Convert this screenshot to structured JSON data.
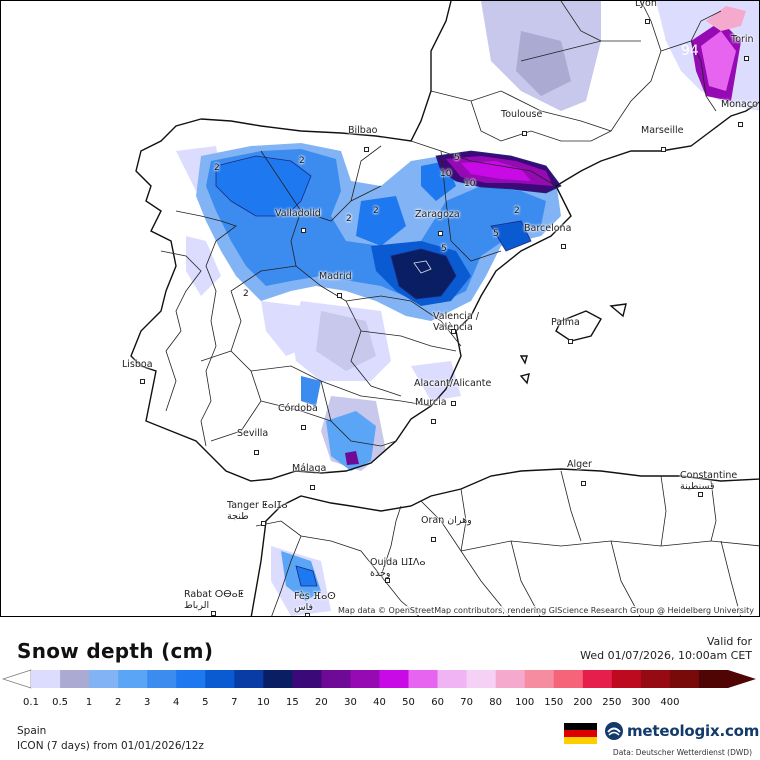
{
  "map": {
    "attribution": "Map data © OpenStreetMap contributors, rendering GIScience Research Group @ Heidelberg University",
    "cities": [
      {
        "name": "Lyon"
      },
      {
        "name": "Torin"
      },
      {
        "name": "Toulouse"
      },
      {
        "name": "Monaco"
      },
      {
        "name": "Marseille"
      },
      {
        "name": "Bilbao"
      },
      {
        "name": "Valladolid"
      },
      {
        "name": "Zaragoza"
      },
      {
        "name": "Barcelona"
      },
      {
        "name": "Madrid"
      },
      {
        "name": "Valencia /\nValència"
      },
      {
        "name": "Palma"
      },
      {
        "name": "Lisboa"
      },
      {
        "name": "Alacant/Alicante"
      },
      {
        "name": "Murcia"
      },
      {
        "name": "Córdoba"
      },
      {
        "name": "Sevilla"
      },
      {
        "name": "Málaga"
      },
      {
        "name": "Alger"
      },
      {
        "name": "Constantine\nقسنطينة"
      },
      {
        "name": "Tanger ⵟⴰⵏⵊⴰ\nطنجة"
      },
      {
        "name": "Oran وهران"
      },
      {
        "name": "Oujda ⵡⵊⴷⴰ\nوجدة"
      },
      {
        "name": "Rabat ⵔⴱⴰⵟ\nالرباط"
      },
      {
        "name": "Fès ⴼⴰⵙ\nفاس"
      }
    ],
    "contour_labels": [
      "2",
      "2",
      "2",
      "2",
      "2",
      "2",
      "5",
      "5",
      "5",
      "10",
      "10",
      "94"
    ]
  },
  "legend": {
    "title": "Snow depth (cm)",
    "valid_label": "Valid for",
    "valid_date": "Wed 01/07/2026, 10:00am CET",
    "ticks": [
      "0.1",
      "0.5",
      "1",
      "2",
      "3",
      "4",
      "5",
      "7",
      "10",
      "15",
      "20",
      "30",
      "40",
      "50",
      "60",
      "70",
      "80",
      "100",
      "150",
      "200",
      "250",
      "300",
      "400"
    ],
    "colors": [
      "#dcdcff",
      "#aaaad2",
      "#82b4f5",
      "#5aa5f5",
      "#3c8cf0",
      "#1e78f0",
      "#0a5ad2",
      "#0a3ca5",
      "#0a1e64",
      "#3c0a78",
      "#6e0a96",
      "#960ab4",
      "#c80ae6",
      "#e664f0",
      "#f0b4f5",
      "#f5d2f5",
      "#f5aacd",
      "#f58ca0",
      "#f56478",
      "#e61e4b",
      "#be0a1e",
      "#960a14",
      "#780a0a",
      "#500505"
    ],
    "region": "Spain",
    "model": "ICON (7 days)  from  01/01/2026/12z",
    "brand": "meteologix.com",
    "source": "Data: Deutscher Wetterdienst  (DWD)"
  }
}
